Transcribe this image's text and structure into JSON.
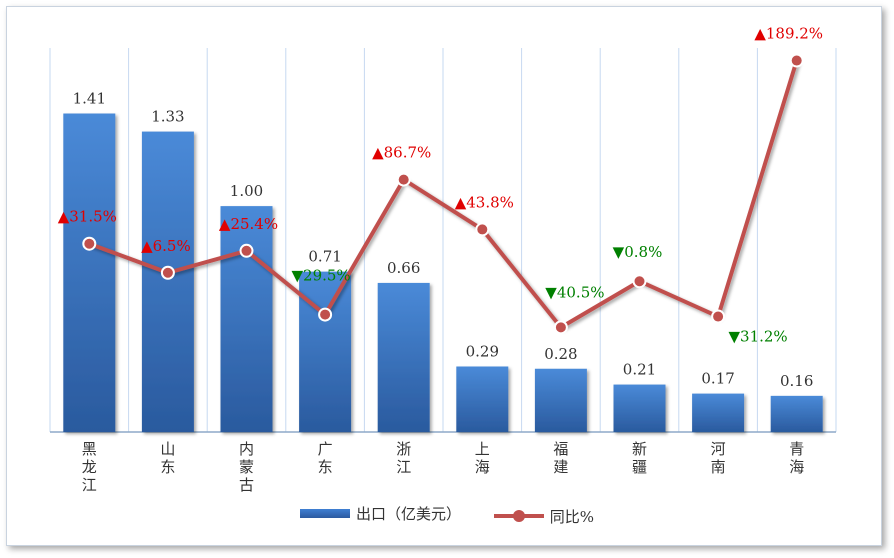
{
  "chart_data": {
    "type": "bar",
    "categories": [
      "黑龙江",
      "山东",
      "内蒙古",
      "广东",
      "浙江",
      "上海",
      "福建",
      "新疆",
      "河南",
      "青海"
    ],
    "series": [
      {
        "name": "出口（亿美元）",
        "type": "bar",
        "values": [
          1.41,
          1.33,
          1.0,
          0.71,
          0.66,
          0.29,
          0.28,
          0.21,
          0.17,
          0.16
        ]
      },
      {
        "name": "同比%",
        "type": "line",
        "values": [
          31.5,
          6.5,
          25.4,
          -29.5,
          86.7,
          43.8,
          -40.5,
          -0.8,
          -31.2,
          189.2
        ],
        "labels": [
          "31.5%",
          "6.5%",
          "25.4%",
          "29.5%",
          "86.7%",
          "43.8%",
          "40.5%",
          "0.8%",
          "31.2%",
          "189.2%"
        ],
        "directions": [
          "up",
          "up",
          "up",
          "down",
          "up",
          "up",
          "down",
          "down",
          "down",
          "up"
        ]
      }
    ],
    "bar_labels": [
      "1.41",
      "1.33",
      "1.00",
      "0.71",
      "0.66",
      "0.29",
      "0.28",
      "0.21",
      "0.17",
      "0.16"
    ],
    "colors": {
      "bar": "#3a72c0",
      "line": "#c0504d",
      "up": "#e00000",
      "down": "#008000",
      "grid": "#c6d9f1"
    },
    "grid": true,
    "legend": "bottom"
  },
  "legend": {
    "bar_label": "出口（亿美元）",
    "line_label": "同比%"
  }
}
